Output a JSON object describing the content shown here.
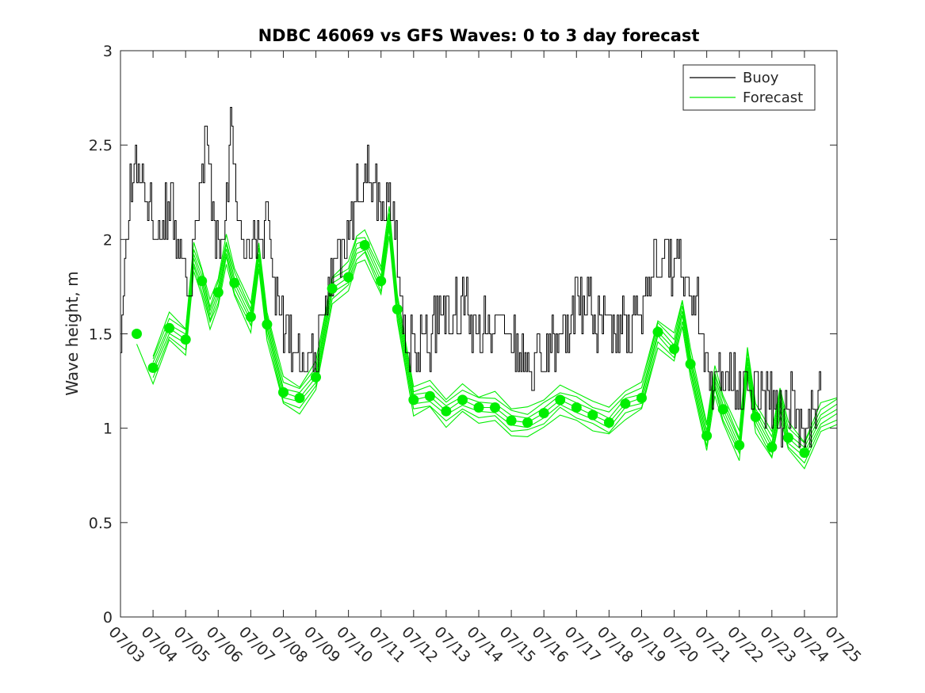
{
  "chart_data": {
    "type": "line",
    "title": "NDBC 46069 vs GFS Waves: 0 to 3 day forecast",
    "xlabel": "",
    "ylabel": "Wave height, m",
    "ylim": [
      0,
      3
    ],
    "xlim": [
      "07/03",
      "07/25"
    ],
    "x_tick_labels": [
      "07/03",
      "07/04",
      "07/05",
      "07/06",
      "07/07",
      "07/08",
      "07/09",
      "07/10",
      "07/11",
      "07/12",
      "07/13",
      "07/14",
      "07/15",
      "07/16",
      "07/17",
      "07/18",
      "07/19",
      "07/20",
      "07/21",
      "07/22",
      "07/23",
      "07/24",
      "07/25"
    ],
    "y_ticks": [
      0,
      0.5,
      1,
      1.5,
      2,
      2.5,
      3
    ],
    "y_tick_labels": [
      "0",
      "0.5",
      "1",
      "1.5",
      "2",
      "2.5",
      "3"
    ],
    "grid": false,
    "legend": {
      "position": "top-right",
      "entries": [
        "Buoy",
        "Forecast"
      ]
    },
    "colors": {
      "buoy": "#000000",
      "forecast": "#00ee00"
    },
    "buoy_series": {
      "name": "Buoy",
      "anchors": [
        [
          "07/03 00:00",
          1.45
        ],
        [
          "07/03 06:00",
          2.2
        ],
        [
          "07/03 12:00",
          2.4
        ],
        [
          "07/03 21:00",
          2.2
        ],
        [
          "07/04 06:00",
          2.0
        ],
        [
          "07/04 12:00",
          2.2
        ],
        [
          "07/04 21:00",
          1.85
        ],
        [
          "07/05 03:00",
          1.75
        ],
        [
          "07/05 09:00",
          2.1
        ],
        [
          "07/05 15:00",
          2.6
        ],
        [
          "07/05 21:00",
          2.0
        ],
        [
          "07/06 03:00",
          1.95
        ],
        [
          "07/06 09:00",
          2.6
        ],
        [
          "07/06 15:00",
          2.1
        ],
        [
          "07/07 00:00",
          2.05
        ],
        [
          "07/07 12:00",
          2.05
        ],
        [
          "07/07 21:00",
          1.6
        ],
        [
          "07/08 06:00",
          1.45
        ],
        [
          "07/08 12:00",
          1.3
        ],
        [
          "07/09 00:00",
          1.4
        ],
        [
          "07/09 12:00",
          1.85
        ],
        [
          "07/10 00:00",
          2.05
        ],
        [
          "07/10 09:00",
          2.3
        ],
        [
          "07/10 15:00",
          2.35
        ],
        [
          "07/11 00:00",
          2.2
        ],
        [
          "07/11 09:00",
          2.2
        ],
        [
          "07/11 15:00",
          1.7
        ],
        [
          "07/11 21:00",
          1.45
        ],
        [
          "07/12 06:00",
          1.45
        ],
        [
          "07/12 12:00",
          1.5
        ],
        [
          "07/12 21:00",
          1.65
        ],
        [
          "07/13 06:00",
          1.6
        ],
        [
          "07/13 12:00",
          1.65
        ],
        [
          "07/14 00:00",
          1.55
        ],
        [
          "07/14 12:00",
          1.55
        ],
        [
          "07/15 00:00",
          1.45
        ],
        [
          "07/15 12:00",
          1.35
        ],
        [
          "07/16 00:00",
          1.35
        ],
        [
          "07/16 12:00",
          1.5
        ],
        [
          "07/17 00:00",
          1.65
        ],
        [
          "07/17 12:00",
          1.6
        ],
        [
          "07/18 00:00",
          1.55
        ],
        [
          "07/18 12:00",
          1.5
        ],
        [
          "07/18 21:00",
          1.55
        ],
        [
          "07/19 06:00",
          1.85
        ],
        [
          "07/19 18:00",
          1.9
        ],
        [
          "07/20 06:00",
          1.8
        ],
        [
          "07/20 18:00",
          1.6
        ],
        [
          "07/21 00:00",
          1.35
        ],
        [
          "07/21 09:00",
          1.25
        ],
        [
          "07/21 18:00",
          1.3
        ],
        [
          "07/22 06:00",
          1.2
        ],
        [
          "07/22 12:00",
          1.2
        ],
        [
          "07/22 18:00",
          1.15
        ],
        [
          "07/23 06:00",
          1.05
        ],
        [
          "07/23 12:00",
          1.15
        ],
        [
          "07/24 00:00",
          1.0
        ],
        [
          "07/24 06:00",
          1.05
        ],
        [
          "07/24 12:00",
          1.3
        ]
      ]
    },
    "forecast_series": {
      "name": "Forecast",
      "run_count": 7,
      "run_spread": [
        -0.09,
        -0.06,
        -0.03,
        0.0,
        0.03,
        0.06,
        0.09
      ],
      "center_line": [
        [
          "07/03 12:00",
          1.5
        ],
        [
          "07/04 00:00",
          1.32
        ],
        [
          "07/04 12:00",
          1.53
        ],
        [
          "07/05 00:00",
          1.47
        ],
        [
          "07/05 06:00",
          1.9
        ],
        [
          "07/05 12:00",
          1.78
        ],
        [
          "07/05 18:00",
          1.6
        ],
        [
          "07/06 00:00",
          1.72
        ],
        [
          "07/06 06:00",
          1.95
        ],
        [
          "07/06 12:00",
          1.77
        ],
        [
          "07/07 00:00",
          1.59
        ],
        [
          "07/07 06:00",
          1.9
        ],
        [
          "07/07 12:00",
          1.55
        ],
        [
          "07/08 00:00",
          1.19
        ],
        [
          "07/08 12:00",
          1.16
        ],
        [
          "07/09 00:00",
          1.27
        ],
        [
          "07/09 12:00",
          1.74
        ],
        [
          "07/10 00:00",
          1.8
        ],
        [
          "07/10 06:00",
          1.95
        ],
        [
          "07/10 12:00",
          1.97
        ],
        [
          "07/11 00:00",
          1.78
        ],
        [
          "07/11 06:00",
          2.1
        ],
        [
          "07/11 12:00",
          1.63
        ],
        [
          "07/12 00:00",
          1.15
        ],
        [
          "07/12 12:00",
          1.17
        ],
        [
          "07/13 00:00",
          1.09
        ],
        [
          "07/13 12:00",
          1.15
        ],
        [
          "07/14 00:00",
          1.11
        ],
        [
          "07/14 12:00",
          1.11
        ],
        [
          "07/15 00:00",
          1.04
        ],
        [
          "07/15 12:00",
          1.03
        ],
        [
          "07/16 00:00",
          1.08
        ],
        [
          "07/16 12:00",
          1.15
        ],
        [
          "07/17 00:00",
          1.11
        ],
        [
          "07/17 12:00",
          1.07
        ],
        [
          "07/18 00:00",
          1.03
        ],
        [
          "07/18 12:00",
          1.13
        ],
        [
          "07/19 00:00",
          1.16
        ],
        [
          "07/19 12:00",
          1.51
        ],
        [
          "07/20 00:00",
          1.42
        ],
        [
          "07/20 06:00",
          1.62
        ],
        [
          "07/20 12:00",
          1.34
        ],
        [
          "07/21 00:00",
          0.96
        ],
        [
          "07/21 06:00",
          1.25
        ],
        [
          "07/21 12:00",
          1.1
        ],
        [
          "07/22 00:00",
          0.91
        ],
        [
          "07/22 06:00",
          1.35
        ],
        [
          "07/22 12:00",
          1.06
        ],
        [
          "07/23 00:00",
          0.9
        ],
        [
          "07/23 06:00",
          1.15
        ],
        [
          "07/23 12:00",
          0.95
        ],
        [
          "07/24 00:00",
          0.87
        ],
        [
          "07/24 12:00",
          1.05
        ],
        [
          "07/25 00:00",
          1.1
        ]
      ],
      "analysis_points": [
        [
          "07/03 12:00",
          1.5
        ],
        [
          "07/04 00:00",
          1.32
        ],
        [
          "07/04 12:00",
          1.53
        ],
        [
          "07/05 00:00",
          1.47
        ],
        [
          "07/05 12:00",
          1.78
        ],
        [
          "07/06 00:00",
          1.72
        ],
        [
          "07/06 12:00",
          1.77
        ],
        [
          "07/07 00:00",
          1.59
        ],
        [
          "07/07 12:00",
          1.55
        ],
        [
          "07/08 00:00",
          1.19
        ],
        [
          "07/08 12:00",
          1.16
        ],
        [
          "07/09 00:00",
          1.27
        ],
        [
          "07/09 12:00",
          1.74
        ],
        [
          "07/10 00:00",
          1.8
        ],
        [
          "07/10 12:00",
          1.97
        ],
        [
          "07/11 00:00",
          1.78
        ],
        [
          "07/11 12:00",
          1.63
        ],
        [
          "07/12 00:00",
          1.15
        ],
        [
          "07/12 12:00",
          1.17
        ],
        [
          "07/13 00:00",
          1.09
        ],
        [
          "07/13 12:00",
          1.15
        ],
        [
          "07/14 00:00",
          1.11
        ],
        [
          "07/14 12:00",
          1.11
        ],
        [
          "07/15 00:00",
          1.04
        ],
        [
          "07/15 12:00",
          1.03
        ],
        [
          "07/16 00:00",
          1.08
        ],
        [
          "07/16 12:00",
          1.15
        ],
        [
          "07/17 00:00",
          1.11
        ],
        [
          "07/17 12:00",
          1.07
        ],
        [
          "07/18 00:00",
          1.03
        ],
        [
          "07/18 12:00",
          1.13
        ],
        [
          "07/19 00:00",
          1.16
        ],
        [
          "07/19 12:00",
          1.51
        ],
        [
          "07/20 00:00",
          1.42
        ],
        [
          "07/20 12:00",
          1.34
        ],
        [
          "07/21 00:00",
          0.96
        ],
        [
          "07/21 12:00",
          1.1
        ],
        [
          "07/22 00:00",
          0.91
        ],
        [
          "07/22 12:00",
          1.06
        ],
        [
          "07/23 00:00",
          0.9
        ],
        [
          "07/23 12:00",
          0.95
        ],
        [
          "07/24 00:00",
          0.87
        ]
      ]
    }
  }
}
